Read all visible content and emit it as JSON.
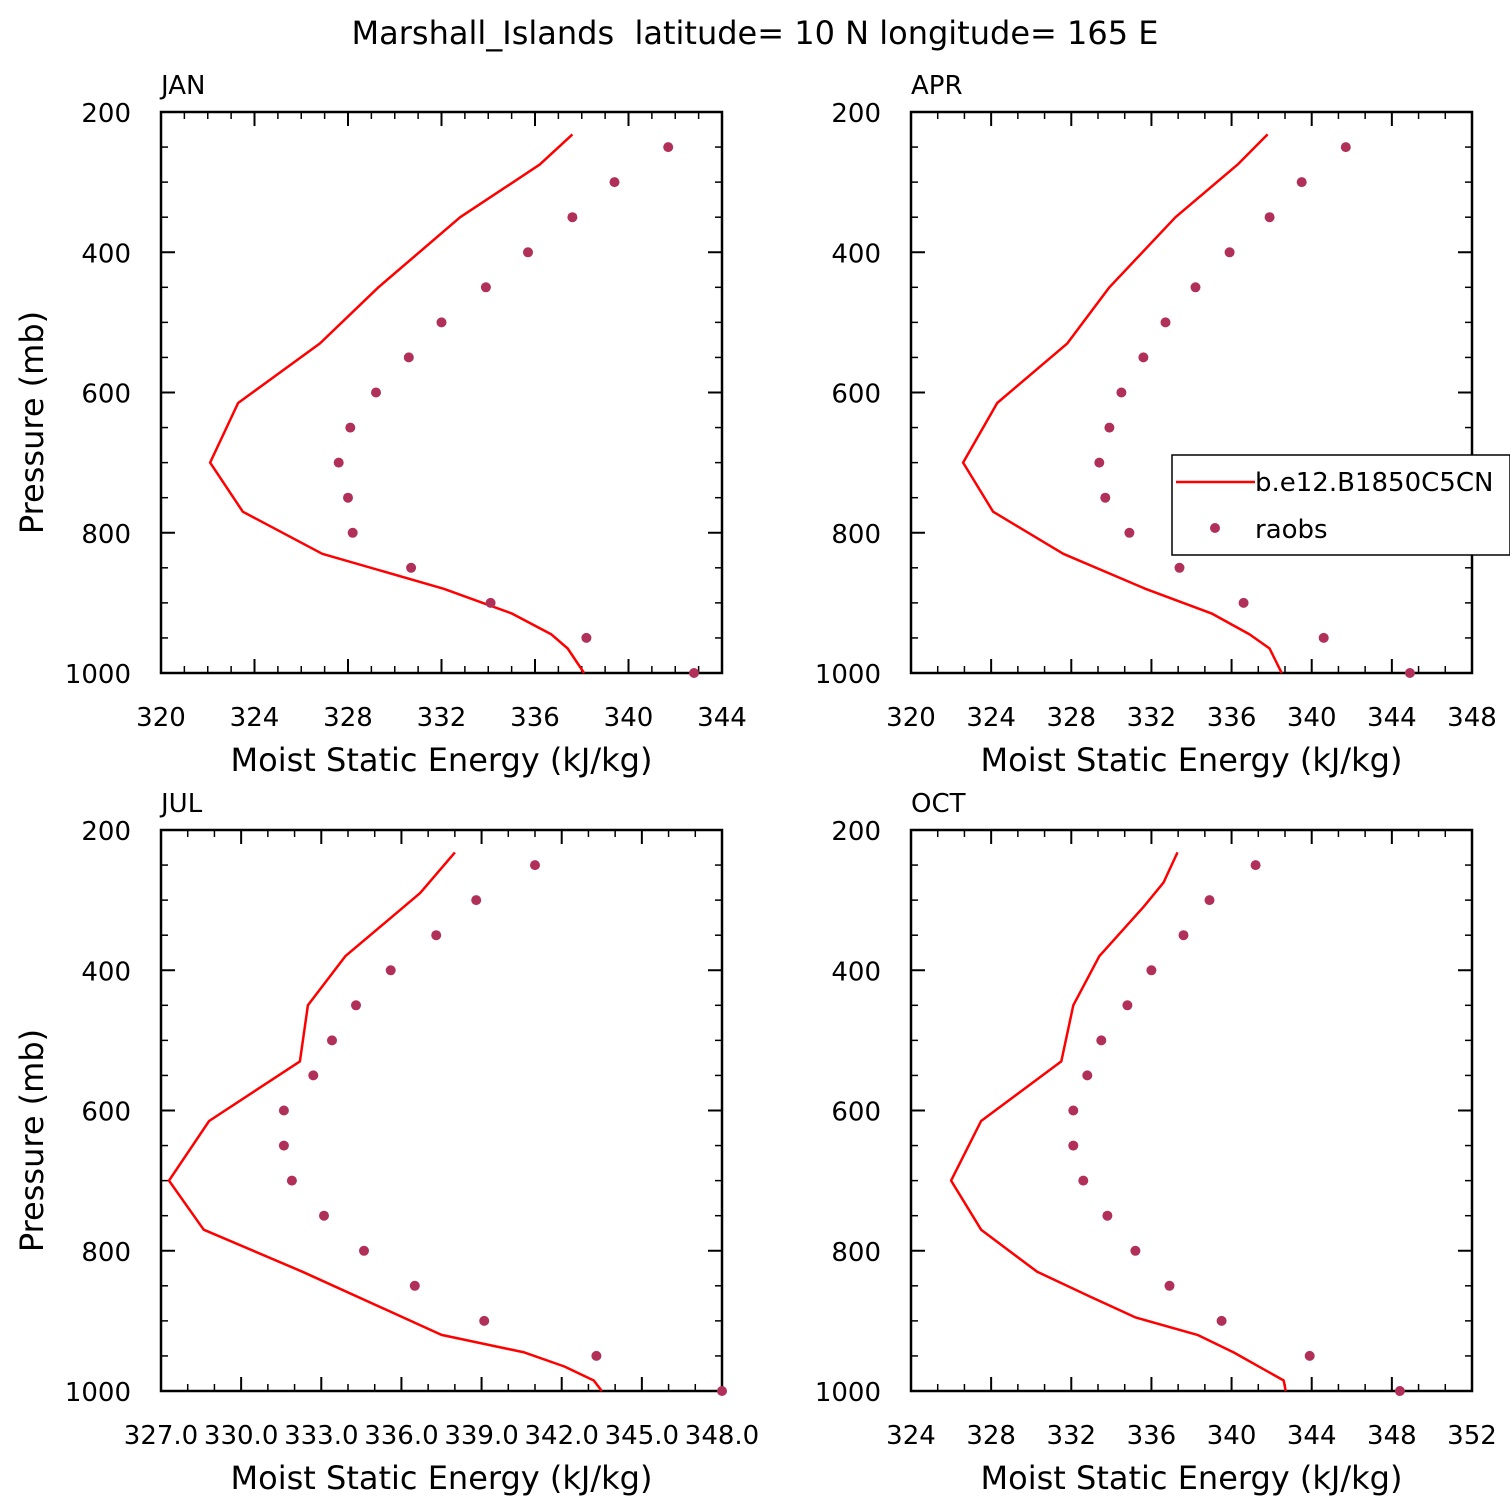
{
  "title": "Marshall_Islands  latitude= 10 N longitude= 165 E",
  "colors": {
    "model": "#ff0000",
    "obs": "#b0305a"
  },
  "legend": {
    "model_label": "b.e12.B1850C5CN",
    "obs_label": "raobs"
  },
  "chart_data": [
    {
      "type": "line",
      "panel": "JAN",
      "xlabel": "Moist Static Energy (kJ/kg)",
      "ylabel": "Pressure (mb)",
      "xlim": [
        320,
        344
      ],
      "ylim": [
        1000,
        200
      ],
      "xticks": [
        "320",
        "324",
        "328",
        "332",
        "336",
        "340",
        "344"
      ],
      "yticks": [
        "200",
        "400",
        "600",
        "800",
        "1000"
      ],
      "series": [
        {
          "name": "b.e12.B1850C5CN",
          "kind": "line",
          "x": [
            338.1,
            337.4,
            336.7,
            335.0,
            332.1,
            326.9,
            323.5,
            322.1,
            323.3,
            326.8,
            329.3,
            332.8,
            336.2,
            337.6
          ],
          "y": [
            1000,
            965,
            945,
            915,
            880,
            830,
            770,
            700,
            615,
            530,
            450,
            350,
            275,
            232
          ]
        },
        {
          "name": "raobs",
          "kind": "scatter",
          "x": [
            342.8,
            338.2,
            334.1,
            330.7,
            328.2,
            328.0,
            327.6,
            328.1,
            329.2,
            330.6,
            332.0,
            333.9,
            335.7,
            337.6,
            339.4,
            341.7
          ],
          "y": [
            1000,
            950,
            900,
            850,
            800,
            750,
            700,
            650,
            600,
            550,
            500,
            450,
            400,
            350,
            300,
            250
          ]
        }
      ]
    },
    {
      "type": "line",
      "panel": "APR",
      "xlabel": "Moist Static Energy (kJ/kg)",
      "ylabel": "",
      "xlim": [
        320,
        348
      ],
      "ylim": [
        1000,
        200
      ],
      "xticks": [
        "320",
        "324",
        "328",
        "332",
        "336",
        "340",
        "344",
        "348"
      ],
      "yticks": [
        "200",
        "400",
        "600",
        "800",
        "1000"
      ],
      "series": [
        {
          "name": "b.e12.B1850C5CN",
          "kind": "line",
          "x": [
            338.5,
            337.9,
            336.9,
            335.0,
            331.7,
            327.6,
            324.1,
            322.6,
            324.3,
            327.8,
            329.9,
            333.2,
            336.3,
            337.8
          ],
          "y": [
            1000,
            965,
            945,
            915,
            880,
            830,
            770,
            700,
            615,
            530,
            450,
            350,
            275,
            232
          ]
        },
        {
          "name": "raobs",
          "kind": "scatter",
          "x": [
            344.9,
            340.6,
            336.6,
            333.4,
            330.9,
            329.7,
            329.4,
            329.9,
            330.5,
            331.6,
            332.7,
            334.2,
            335.9,
            337.9,
            339.5,
            341.7
          ],
          "y": [
            1000,
            950,
            900,
            850,
            800,
            750,
            700,
            650,
            600,
            550,
            500,
            450,
            400,
            350,
            300,
            250
          ]
        }
      ]
    },
    {
      "type": "line",
      "panel": "JUL",
      "xlabel": "Moist Static Energy (kJ/kg)",
      "ylabel": "Pressure (mb)",
      "xlim": [
        327.0,
        348.0
      ],
      "ylim": [
        1000,
        200
      ],
      "xticks": [
        "327.0",
        "330.0",
        "333.0",
        "336.0",
        "339.0",
        "342.0",
        "345.0",
        "348.0"
      ],
      "yticks": [
        "200",
        "400",
        "600",
        "800",
        "1000"
      ],
      "series": [
        {
          "name": "b.e12.B1850C5CN",
          "kind": "line",
          "x": [
            343.5,
            343.2,
            342.1,
            340.6,
            337.5,
            332.3,
            328.6,
            327.3,
            328.8,
            332.2,
            332.5,
            333.9,
            336.7,
            338.0
          ],
          "y": [
            1000,
            985,
            965,
            945,
            920,
            830,
            770,
            700,
            615,
            530,
            450,
            380,
            290,
            232
          ]
        },
        {
          "name": "raobs",
          "kind": "scatter",
          "x": [
            348.0,
            343.3,
            339.1,
            336.5,
            334.6,
            333.1,
            331.9,
            331.6,
            331.6,
            332.7,
            333.4,
            334.3,
            335.6,
            337.3,
            338.8,
            341.0
          ],
          "y": [
            1000,
            950,
            900,
            850,
            800,
            750,
            700,
            650,
            600,
            550,
            500,
            450,
            400,
            350,
            300,
            250
          ]
        }
      ]
    },
    {
      "type": "line",
      "panel": "OCT",
      "xlabel": "Moist Static Energy (kJ/kg)",
      "ylabel": "",
      "xlim": [
        324,
        352
      ],
      "ylim": [
        1000,
        200
      ],
      "xticks": [
        "324",
        "328",
        "332",
        "336",
        "340",
        "344",
        "348",
        "352"
      ],
      "yticks": [
        "200",
        "400",
        "600",
        "800",
        "1000"
      ],
      "series": [
        {
          "name": "b.e12.B1850C5CN",
          "kind": "line",
          "x": [
            342.7,
            342.6,
            340.1,
            338.3,
            335.2,
            332.9,
            330.3,
            327.5,
            326.0,
            327.5,
            331.5,
            332.1,
            333.4,
            335.6,
            336.6,
            337.3
          ],
          "y": [
            1000,
            985,
            945,
            920,
            895,
            865,
            830,
            770,
            700,
            615,
            530,
            450,
            380,
            310,
            275,
            232
          ]
        },
        {
          "name": "raobs",
          "kind": "scatter",
          "x": [
            348.4,
            343.9,
            339.5,
            336.9,
            335.2,
            333.8,
            332.6,
            332.1,
            332.1,
            332.8,
            333.5,
            334.8,
            336.0,
            337.6,
            338.9,
            341.2
          ],
          "y": [
            1000,
            950,
            900,
            850,
            800,
            750,
            700,
            650,
            600,
            550,
            500,
            450,
            400,
            350,
            300,
            250
          ]
        }
      ]
    }
  ]
}
